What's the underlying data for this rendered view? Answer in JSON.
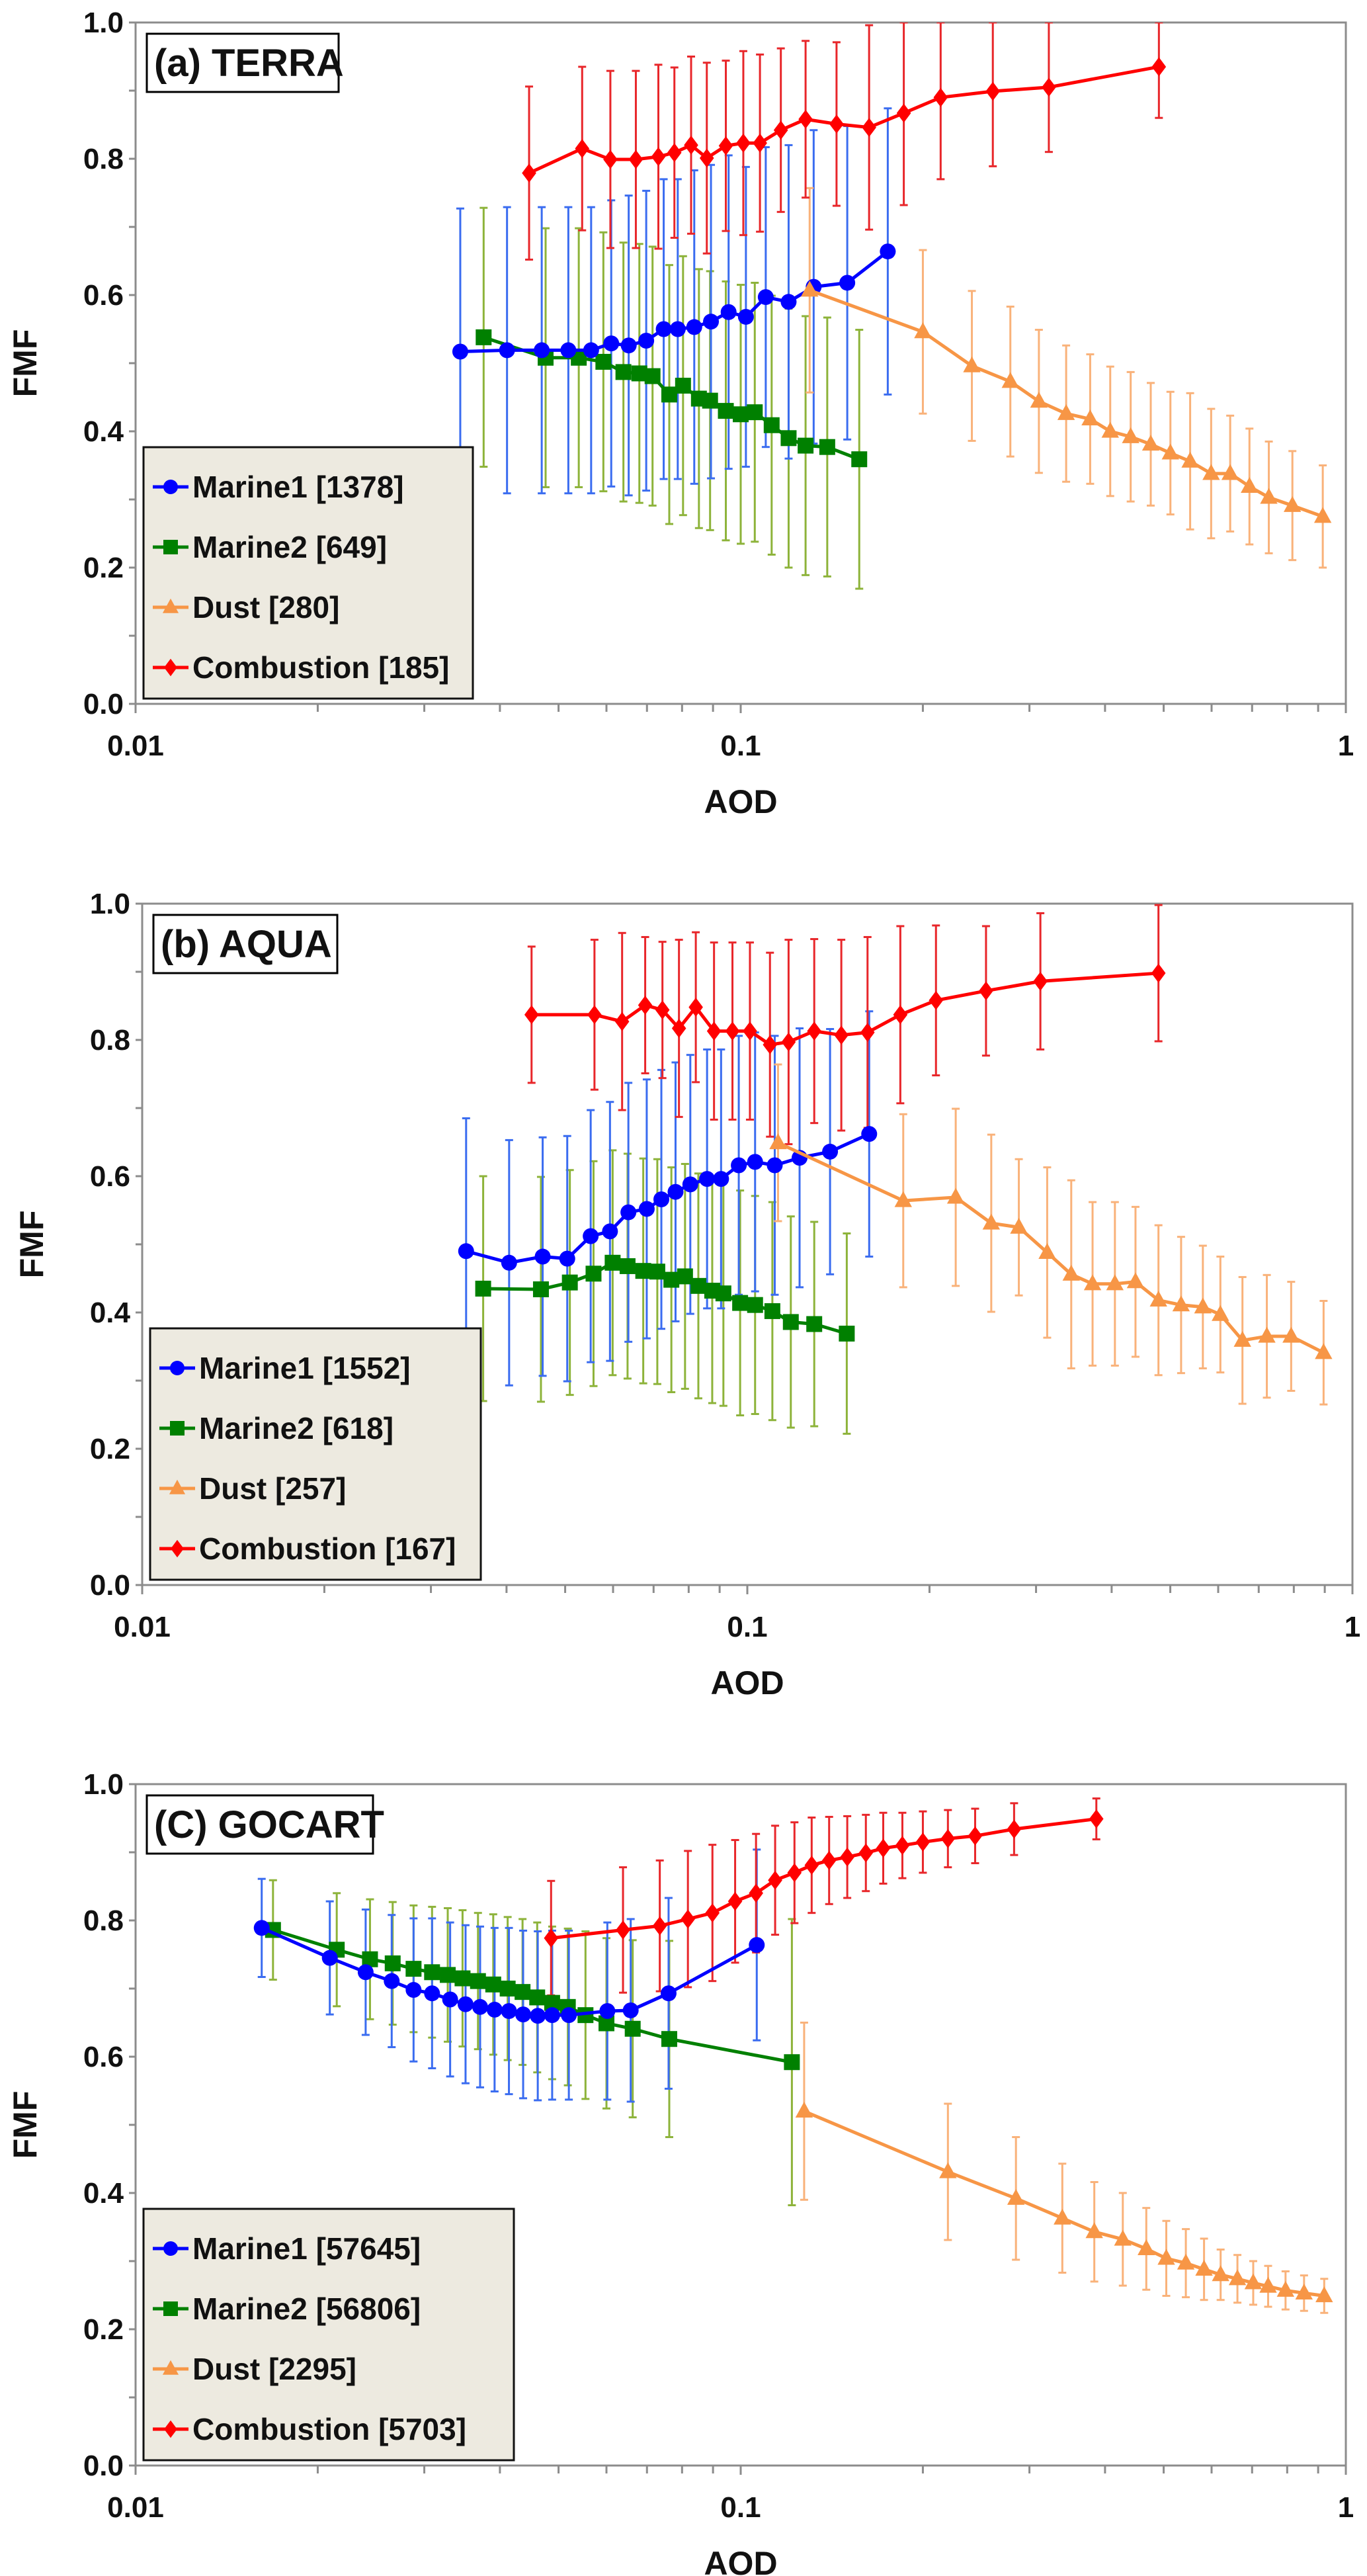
{
  "chart_data": [
    {
      "type": "line",
      "title": "(a) TERRA",
      "xlabel": "AOD",
      "ylabel": "FMF",
      "xscale": "log",
      "xlim": [
        0.01,
        1
      ],
      "ylim": [
        0,
        1
      ],
      "xticks": [
        "0.01",
        "0.1",
        "1"
      ],
      "yticks": [
        "0.0",
        "0.2",
        "0.4",
        "0.6",
        "0.8",
        "1.0"
      ],
      "grid": false,
      "legend_position": "bottom-left",
      "series": [
        {
          "name": "Marine1 [1378]",
          "color": "#0000ff",
          "error_color": "#3a6cf0",
          "marker": "circle",
          "x": [
            0.0344,
            0.0411,
            0.0469,
            0.0519,
            0.0566,
            0.0611,
            0.0653,
            0.0698,
            0.0746,
            0.0787,
            0.0838,
            0.0893,
            0.0955,
            0.102,
            0.11,
            0.12,
            0.132,
            0.15,
            0.175
          ],
          "y": [
            0.517,
            0.519,
            0.519,
            0.519,
            0.519,
            0.529,
            0.526,
            0.533,
            0.55,
            0.55,
            0.553,
            0.561,
            0.575,
            0.568,
            0.597,
            0.59,
            0.612,
            0.618,
            0.664
          ],
          "err": [
            0.21,
            0.21,
            0.21,
            0.21,
            0.21,
            0.21,
            0.22,
            0.22,
            0.22,
            0.22,
            0.23,
            0.23,
            0.23,
            0.22,
            0.22,
            0.23,
            0.23,
            0.23,
            0.21
          ]
        },
        {
          "name": "Marine2 [649]",
          "color": "#008000",
          "error_color": "#8db33a",
          "marker": "square",
          "x": [
            0.0376,
            0.0476,
            0.054,
            0.0593,
            0.064,
            0.068,
            0.0715,
            0.0762,
            0.0803,
            0.0853,
            0.089,
            0.0945,
            0.1,
            0.1055,
            0.1125,
            0.12,
            0.128,
            0.139,
            0.157
          ],
          "y": [
            0.538,
            0.508,
            0.508,
            0.502,
            0.487,
            0.485,
            0.481,
            0.454,
            0.467,
            0.448,
            0.445,
            0.43,
            0.425,
            0.428,
            0.409,
            0.39,
            0.379,
            0.377,
            0.359
          ],
          "err": [
            0.19,
            0.19,
            0.19,
            0.19,
            0.19,
            0.19,
            0.19,
            0.19,
            0.19,
            0.19,
            0.19,
            0.19,
            0.19,
            0.19,
            0.19,
            0.19,
            0.19,
            0.19,
            0.19
          ]
        },
        {
          "name": "Dust [280]",
          "color": "#f79646",
          "error_color": "#f9b27a",
          "marker": "triangle",
          "x": [
            0.13,
            0.2,
            0.241,
            0.279,
            0.311,
            0.345,
            0.378,
            0.408,
            0.441,
            0.476,
            0.513,
            0.553,
            0.599,
            0.644,
            0.693,
            0.746,
            0.816,
            0.916
          ],
          "y": [
            0.607,
            0.546,
            0.496,
            0.473,
            0.444,
            0.426,
            0.418,
            0.4,
            0.392,
            0.381,
            0.368,
            0.356,
            0.338,
            0.338,
            0.319,
            0.303,
            0.291,
            0.275
          ],
          "err": [
            0.15,
            0.12,
            0.11,
            0.11,
            0.105,
            0.1,
            0.095,
            0.095,
            0.095,
            0.09,
            0.09,
            0.1,
            0.095,
            0.085,
            0.085,
            0.082,
            0.08,
            0.075
          ]
        },
        {
          "name": "Combustion [185]",
          "color": "#ff0000",
          "error_color": "#e8262a",
          "marker": "diamond",
          "x": [
            0.0447,
            0.0547,
            0.0609,
            0.0671,
            0.0731,
            0.0777,
            0.0828,
            0.0879,
            0.0945,
            0.101,
            0.1076,
            0.1165,
            0.128,
            0.144,
            0.163,
            0.186,
            0.214,
            0.261,
            0.323,
            0.491
          ],
          "y": [
            0.779,
            0.815,
            0.799,
            0.799,
            0.803,
            0.809,
            0.82,
            0.801,
            0.819,
            0.823,
            0.823,
            0.842,
            0.858,
            0.851,
            0.846,
            0.867,
            0.89,
            0.899,
            0.905,
            0.935
          ],
          "err": [
            0.127,
            0.12,
            0.13,
            0.13,
            0.135,
            0.125,
            0.13,
            0.14,
            0.125,
            0.135,
            0.13,
            0.12,
            0.115,
            0.12,
            0.15,
            0.135,
            0.12,
            0.11,
            0.095,
            0.075
          ]
        }
      ]
    },
    {
      "type": "line",
      "title": "(b) AQUA",
      "xlabel": "AOD",
      "ylabel": "FMF",
      "xscale": "log",
      "xlim": [
        0.01,
        1
      ],
      "ylim": [
        0,
        1
      ],
      "xticks": [
        "0.01",
        "0.1",
        "1"
      ],
      "yticks": [
        "0.0",
        "0.2",
        "0.4",
        "0.6",
        "0.8",
        "1.0"
      ],
      "grid": false,
      "legend_position": "bottom-left",
      "series": [
        {
          "name": "Marine1 [1552]",
          "color": "#0000ff",
          "error_color": "#3a6cf0",
          "marker": "circle",
          "x": [
            0.0343,
            0.0404,
            0.0459,
            0.0504,
            0.0551,
            0.0593,
            0.0636,
            0.0682,
            0.0721,
            0.0761,
            0.0805,
            0.0858,
            0.0905,
            0.0968,
            0.103,
            0.111,
            0.122,
            0.137,
            0.159
          ],
          "y": [
            0.49,
            0.473,
            0.482,
            0.479,
            0.512,
            0.519,
            0.547,
            0.552,
            0.566,
            0.577,
            0.588,
            0.596,
            0.596,
            0.616,
            0.621,
            0.616,
            0.627,
            0.636,
            0.662
          ],
          "err": [
            0.195,
            0.18,
            0.175,
            0.18,
            0.185,
            0.19,
            0.19,
            0.19,
            0.19,
            0.19,
            0.19,
            0.19,
            0.19,
            0.19,
            0.19,
            0.19,
            0.19,
            0.18,
            0.18
          ]
        },
        {
          "name": "Marine2 [618]",
          "color": "#008000",
          "error_color": "#8db33a",
          "marker": "square",
          "x": [
            0.0366,
            0.0456,
            0.0509,
            0.0557,
            0.0599,
            0.0634,
            0.0673,
            0.071,
            0.0749,
            0.0789,
            0.083,
            0.0875,
            0.0913,
            0.0973,
            0.103,
            0.11,
            0.118,
            0.129,
            0.146
          ],
          "y": [
            0.435,
            0.434,
            0.444,
            0.457,
            0.473,
            0.468,
            0.461,
            0.46,
            0.448,
            0.453,
            0.439,
            0.432,
            0.428,
            0.414,
            0.411,
            0.402,
            0.386,
            0.383,
            0.369
          ],
          "err": [
            0.165,
            0.165,
            0.165,
            0.165,
            0.165,
            0.165,
            0.165,
            0.165,
            0.165,
            0.165,
            0.165,
            0.165,
            0.165,
            0.165,
            0.16,
            0.16,
            0.155,
            0.15,
            0.147
          ]
        },
        {
          "name": "Dust [257]",
          "color": "#f79646",
          "error_color": "#f9b27a",
          "marker": "triangle",
          "x": [
            0.1124,
            0.181,
            0.221,
            0.253,
            0.281,
            0.313,
            0.343,
            0.372,
            0.405,
            0.438,
            0.478,
            0.521,
            0.566,
            0.605,
            0.658,
            0.722,
            0.792,
            0.896
          ],
          "y": [
            0.649,
            0.564,
            0.569,
            0.531,
            0.525,
            0.488,
            0.456,
            0.442,
            0.442,
            0.445,
            0.418,
            0.411,
            0.408,
            0.397,
            0.359,
            0.365,
            0.365,
            0.341
          ],
          "err": [
            0.115,
            0.127,
            0.13,
            0.13,
            0.1,
            0.125,
            0.138,
            0.12,
            0.12,
            0.11,
            0.11,
            0.1,
            0.09,
            0.085,
            0.093,
            0.09,
            0.08,
            0.076
          ]
        },
        {
          "name": "Combustion [167]",
          "color": "#ff0000",
          "error_color": "#e8262a",
          "marker": "diamond",
          "x": [
            0.044,
            0.0559,
            0.0621,
            0.0678,
            0.0724,
            0.0771,
            0.0822,
            0.0881,
            0.0945,
            0.101,
            0.109,
            0.117,
            0.129,
            0.143,
            0.158,
            0.179,
            0.205,
            0.248,
            0.305,
            0.478
          ],
          "y": [
            0.837,
            0.837,
            0.827,
            0.851,
            0.844,
            0.817,
            0.848,
            0.813,
            0.813,
            0.813,
            0.793,
            0.797,
            0.813,
            0.807,
            0.811,
            0.837,
            0.858,
            0.872,
            0.886,
            0.898
          ],
          "err": [
            0.1,
            0.11,
            0.13,
            0.1,
            0.1,
            0.13,
            0.11,
            0.13,
            0.13,
            0.13,
            0.135,
            0.15,
            0.135,
            0.14,
            0.14,
            0.13,
            0.11,
            0.095,
            0.1,
            0.1
          ]
        }
      ]
    },
    {
      "type": "line",
      "title": "(C) GOCART",
      "xlabel": "AOD",
      "ylabel": "FMF",
      "xscale": "log",
      "xlim": [
        0.01,
        1
      ],
      "ylim": [
        0,
        1
      ],
      "xticks": [
        "0.01",
        "0.1",
        "1"
      ],
      "yticks": [
        "0.0",
        "0.2",
        "0.4",
        "0.6",
        "0.8",
        "1.0"
      ],
      "grid": false,
      "legend_position": "bottom-left",
      "series": [
        {
          "name": "Marine1 [57645]",
          "color": "#0000ff",
          "error_color": "#3a6cf0",
          "marker": "circle",
          "x": [
            0.01616,
            0.02094,
            0.024,
            0.0265,
            0.0288,
            0.0309,
            0.0331,
            0.0351,
            0.0371,
            0.0392,
            0.0414,
            0.0437,
            0.0462,
            0.0488,
            0.052,
            0.0602,
            0.0658,
            0.076,
            0.1063
          ],
          "y": [
            0.789,
            0.745,
            0.724,
            0.711,
            0.698,
            0.693,
            0.684,
            0.677,
            0.673,
            0.669,
            0.667,
            0.662,
            0.66,
            0.661,
            0.661,
            0.667,
            0.668,
            0.693,
            0.764
          ],
          "err": [
            0.072,
            0.083,
            0.092,
            0.097,
            0.105,
            0.11,
            0.113,
            0.116,
            0.118,
            0.12,
            0.122,
            0.123,
            0.124,
            0.124,
            0.124,
            0.13,
            0.134,
            0.14,
            0.14
          ]
        },
        {
          "name": "Marine2 [56806]",
          "color": "#008000",
          "error_color": "#8db33a",
          "marker": "square",
          "x": [
            0.01687,
            0.0215,
            0.0244,
            0.0266,
            0.0288,
            0.0309,
            0.0328,
            0.0347,
            0.0368,
            0.039,
            0.0412,
            0.0436,
            0.0461,
            0.0488,
            0.0518,
            0.0554,
            0.06,
            0.0663,
            0.0762,
            0.1215
          ],
          "y": [
            0.786,
            0.757,
            0.743,
            0.737,
            0.729,
            0.724,
            0.72,
            0.715,
            0.711,
            0.706,
            0.7,
            0.695,
            0.687,
            0.679,
            0.673,
            0.661,
            0.649,
            0.641,
            0.626,
            0.592
          ],
          "err": [
            0.073,
            0.083,
            0.088,
            0.09,
            0.093,
            0.096,
            0.098,
            0.1,
            0.1,
            0.103,
            0.105,
            0.107,
            0.11,
            0.112,
            0.115,
            0.123,
            0.125,
            0.13,
            0.144,
            0.21
          ]
        },
        {
          "name": "Dust [2295]",
          "color": "#f79646",
          "error_color": "#f9b27a",
          "marker": "triangle",
          "x": [
            0.1273,
            0.22,
            0.285,
            0.34,
            0.384,
            0.428,
            0.468,
            0.505,
            0.544,
            0.583,
            0.621,
            0.662,
            0.703,
            0.744,
            0.795,
            0.853,
            0.921
          ],
          "y": [
            0.52,
            0.431,
            0.392,
            0.363,
            0.343,
            0.332,
            0.318,
            0.304,
            0.297,
            0.288,
            0.28,
            0.274,
            0.268,
            0.263,
            0.257,
            0.253,
            0.249
          ],
          "err": [
            0.13,
            0.1,
            0.09,
            0.08,
            0.073,
            0.068,
            0.06,
            0.055,
            0.05,
            0.045,
            0.037,
            0.035,
            0.032,
            0.03,
            0.028,
            0.026,
            0.025
          ]
        },
        {
          "name": "Combustion [5703]",
          "color": "#ff0000",
          "error_color": "#e8262a",
          "marker": "diamond",
          "x": [
            0.0486,
            0.0639,
            0.0735,
            0.0818,
            0.0898,
            0.0979,
            0.106,
            0.114,
            0.1227,
            0.131,
            0.14,
            0.15,
            0.161,
            0.172,
            0.185,
            0.2,
            0.22,
            0.244,
            0.283,
            0.387
          ],
          "y": [
            0.774,
            0.786,
            0.792,
            0.802,
            0.811,
            0.828,
            0.84,
            0.859,
            0.87,
            0.881,
            0.888,
            0.893,
            0.899,
            0.906,
            0.91,
            0.915,
            0.92,
            0.924,
            0.934,
            0.949
          ],
          "err": [
            0.084,
            0.092,
            0.096,
            0.1,
            0.1,
            0.09,
            0.087,
            0.08,
            0.074,
            0.07,
            0.064,
            0.06,
            0.056,
            0.052,
            0.048,
            0.045,
            0.042,
            0.04,
            0.038,
            0.03
          ]
        }
      ]
    }
  ]
}
